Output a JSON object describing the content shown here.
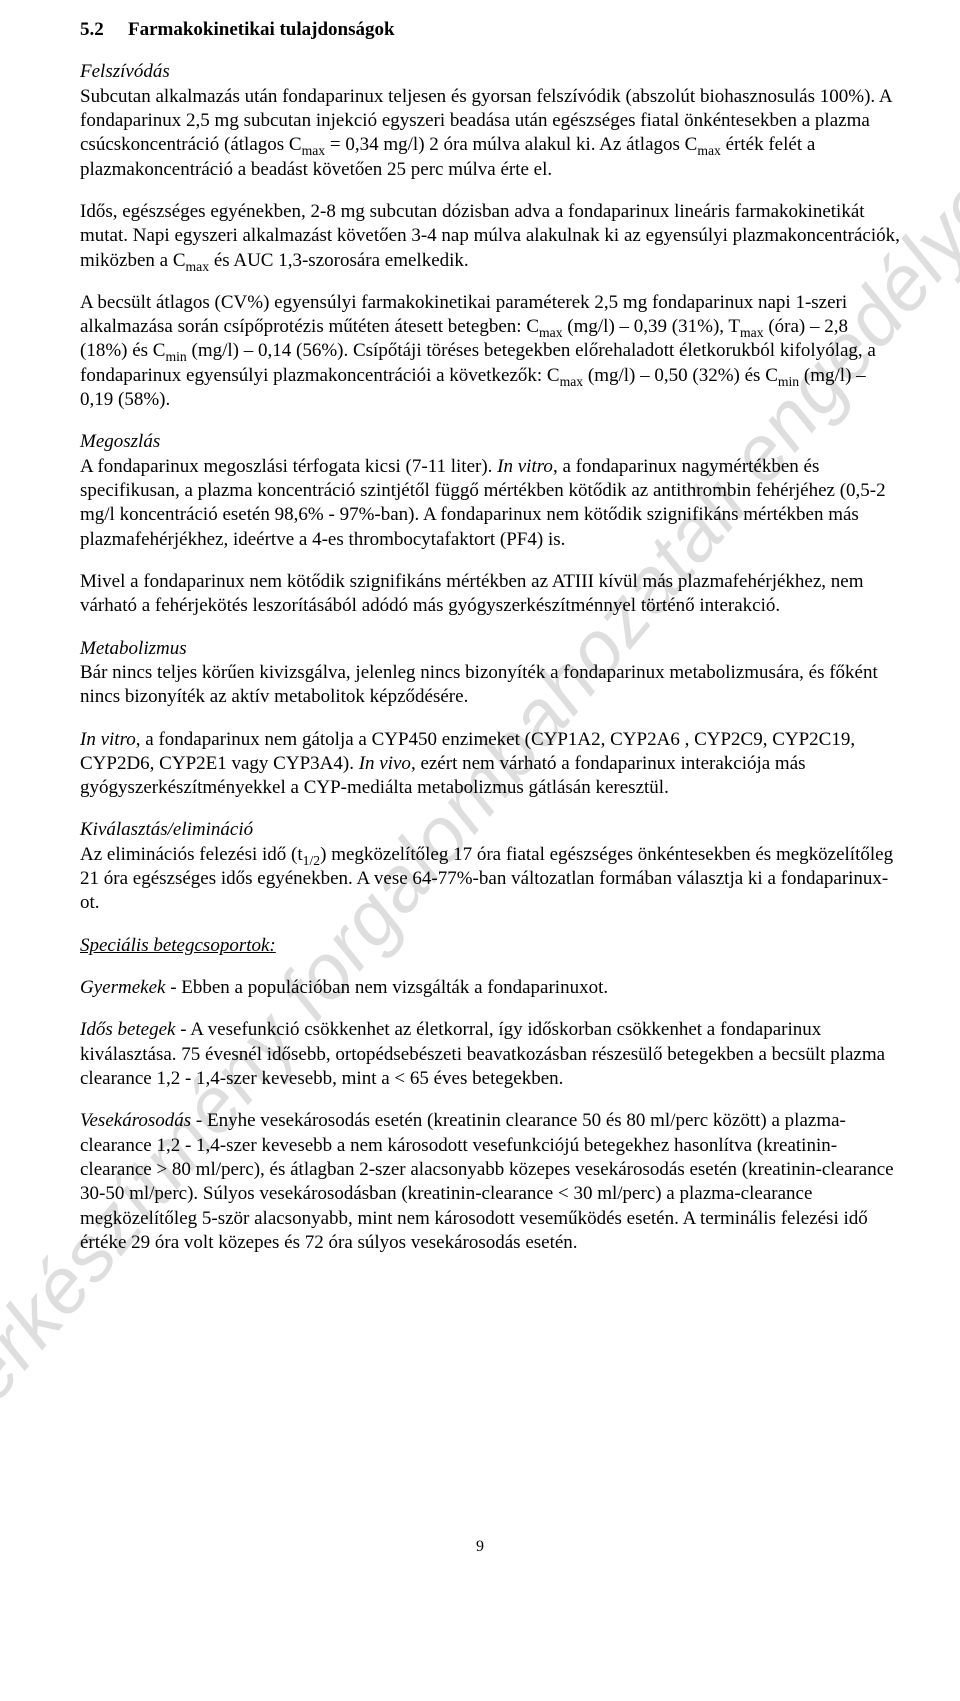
{
  "watermark": "A gyógyszerkészítmény forgalombahozatali engedélye megszűnt",
  "heading": {
    "number": "5.2",
    "title": "Farmakokinetikai tulajdonságok"
  },
  "p1_head": "Felszívódás",
  "p1_a": "Subcutan alkalmazás után fondaparinux teljesen és gyorsan felszívódik (abszolút biohasznosulás 100%). A fondaparinux 2,5 mg subcutan injekció egyszeri beadása után egészséges fiatal önkéntesekben a plazma csúcskoncentráció (átlagos C",
  "p1_b": " = 0,34 mg/l) 2 óra múlva alakul ki. Az átlagos C",
  "p1_c": " érték felét a plazmakoncentráció a beadást követően 25 perc múlva érte el.",
  "p2_a": "Idős, egészséges egyénekben, 2-8 mg subcutan dózisban adva a fondaparinux lineáris farmakokinetikát mutat. Napi egyszeri alkalmazást követően 3-4 nap múlva alakulnak ki az egyensúlyi plazmakoncentrációk, miközben a C",
  "p2_b": " és AUC 1,3-szorosára emelkedik.",
  "p3_a": "A becsült átlagos (CV%) egyensúlyi farmakokinetikai paraméterek 2,5 mg fondaparinux napi 1-szeri alkalmazása során csípőprotézis műtéten átesett betegben: C",
  "p3_b": " (mg/l) – 0,39 (31%), T",
  "p3_c": " (óra) – 2,8 (18%) és C",
  "p3_d": " (mg/l) – 0,14 (56%). Csípőtáji töréses betegekben előrehaladott életkorukból kifolyólag, a fondaparinux egyensúlyi plazmakoncentrációi a következők: C",
  "p3_e": " (mg/l) – 0,50 (32%) és C",
  "p3_f": " (mg/l) – 0,19 (58%).",
  "p4_head": "Megoszlás",
  "p4_a": "A fondaparinux megoszlási térfogata kicsi (7-11 liter). ",
  "p4_invitro": "In vitro",
  "p4_b": ", a fondaparinux nagymértékben és specifikusan, a plazma koncentráció szintjétől függő mértékben kötődik az antithrombin fehérjéhez (0,5-2 mg/l koncentráció esetén 98,6% - 97%-ban). A fondaparinux nem kötődik szignifikáns mértékben más plazmafehérjékhez, ideértve a 4-es thrombocytafaktort (PF4) is.",
  "p5": "Mivel a fondaparinux nem kötődik szignifikáns mértékben az ATIII kívül más plazmafehérjékhez, nem várható a fehérjekötés leszorításából adódó más gyógyszerkészítménnyel történő interakció.",
  "p6_head": "Metabolizmus",
  "p6": "Bár nincs teljes körűen kivizsgálva, jelenleg nincs bizonyíték a fondaparinux metabolizmusára, és főként nincs bizonyíték az aktív metabolitok képződésére.",
  "p7_invitro": "In vitro",
  "p7_a": ", a fondaparinux nem gátolja a CYP450 enzimeket (CYP1A2, CYP2A6 , CYP2C9, CYP2C19, CYP2D6, CYP2E1 vagy CYP3A4). ",
  "p7_invivo": "In vivo",
  "p7_b": ", ezért nem várható a fondaparinux interakciója más gyógyszerkészítményekkel a CYP-mediálta metabolizmus gátlásán keresztül.",
  "p8_head": "Kiválasztás/elimináció",
  "p8_a": "Az eliminációs felezési idő (t",
  "p8_b": ") megközelítőleg 17 óra fiatal egészséges önkéntesekben és megközelítőleg 21 óra egészséges idős egyénekben. A vese 64-77%-ban változatlan formában választja ki a fondaparinux-ot.",
  "p9_head": "Speciális betegcsoportok:",
  "p10_head": "Gyermekek",
  "p10": " - Ebben a populációban nem vizsgálták a fondaparinuxot.",
  "p11_head": "Idős betegek",
  "p11": " - A vesefunkció csökkenhet az életkorral, így időskorban csökkenhet a fondaparinux kiválasztása. 75 évesnél idősebb, ortopédsebészeti beavatkozásban részesülő betegekben a becsült plazma clearance 1,2 - 1,4-szer kevesebb, mint a < 65 éves betegekben.",
  "p12_head": "Vesekárosodás",
  "p12": " - Enyhe vesekárosodás esetén (kreatinin clearance 50 és 80 ml/perc között) a plazma-clearance 1,2 - 1,4-szer kevesebb a nem károsodott vesefunkciójú betegekhez hasonlítva (kreatinin-clearance > 80 ml/perc), és átlagban 2-szer alacsonyabb közepes vesekárosodás esetén (kreatinin-clearance 30-50 ml/perc). Súlyos vesekárosodásban (kreatinin-clearance < 30 ml/perc) a plazma-clearance megközelítőleg 5-ször alacsonyabb, mint nem károsodott veseműködés esetén. A terminális felezési idő értéke 29 óra volt közepes és 72 óra súlyos vesekárosodás esetén.",
  "sub": {
    "max": "max",
    "min": "min",
    "half": "1/2"
  },
  "page_number": "9"
}
